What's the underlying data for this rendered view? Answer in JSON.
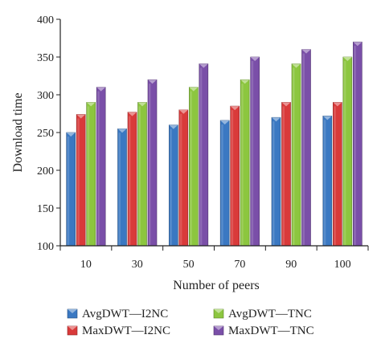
{
  "chart_data": {
    "type": "bar",
    "title": "",
    "xlabel": "Number of peers",
    "ylabel": "Download time",
    "categories": [
      "10",
      "30",
      "50",
      "70",
      "90",
      "100"
    ],
    "ylim": [
      100,
      400
    ],
    "yticks": [
      "100",
      "150",
      "200",
      "250",
      "300",
      "350",
      "400"
    ],
    "grid": false,
    "legend_position": "bottom",
    "series": [
      {
        "name": "AvgDWT—I2NC",
        "color": "#3a78c2",
        "values": [
          250,
          255,
          260,
          266,
          270,
          272
        ]
      },
      {
        "name": "MaxDWT—I2NC",
        "color": "#d93a3a",
        "values": [
          274,
          277,
          280,
          285,
          290,
          290
        ]
      },
      {
        "name": "AvgDWT—TNC",
        "color": "#8cc63f",
        "values": [
          290,
          290,
          310,
          320,
          341,
          350
        ]
      },
      {
        "name": "MaxDWT—TNC",
        "color": "#7a4fa8",
        "values": [
          310,
          320,
          341,
          350,
          360,
          370
        ]
      }
    ]
  }
}
